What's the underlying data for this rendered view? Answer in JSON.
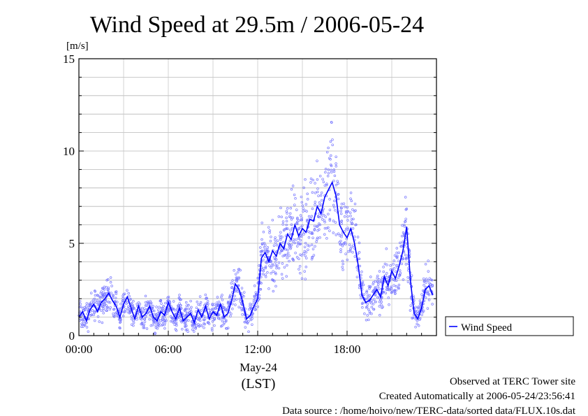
{
  "chart_data": {
    "type": "scatter",
    "title": "Wind Speed at 29.5m / 2006-05-24",
    "ylabel": "[m/s]",
    "xlabel": "(LST)",
    "date_label": "May-24",
    "ylim": [
      0,
      15
    ],
    "xlim": [
      0,
      24
    ],
    "yticks": [
      {
        "value": 0,
        "label": "0"
      },
      {
        "value": 5,
        "label": "5"
      },
      {
        "value": 10,
        "label": "10"
      },
      {
        "value": 15,
        "label": "15"
      }
    ],
    "xticks": [
      {
        "value": 0,
        "label": "00:00"
      },
      {
        "value": 6,
        "label": "06:00"
      },
      {
        "value": 12,
        "label": "12:00"
      },
      {
        "value": 18,
        "label": "18:00"
      }
    ],
    "grid": true,
    "legend": {
      "position": "right",
      "entries": [
        "Wind Speed"
      ]
    },
    "series": [
      {
        "name": "Wind Speed",
        "color": "#0000ff",
        "x": [
          0.0,
          0.25,
          0.5,
          0.75,
          1.0,
          1.25,
          1.5,
          1.75,
          2.0,
          2.25,
          2.5,
          2.75,
          3.0,
          3.25,
          3.5,
          3.75,
          4.0,
          4.25,
          4.5,
          4.75,
          5.0,
          5.25,
          5.5,
          5.75,
          6.0,
          6.25,
          6.5,
          6.75,
          7.0,
          7.25,
          7.5,
          7.75,
          8.0,
          8.25,
          8.5,
          8.75,
          9.0,
          9.25,
          9.5,
          9.75,
          10.0,
          10.25,
          10.5,
          10.75,
          11.0,
          11.25,
          11.5,
          11.75,
          12.0,
          12.25,
          12.5,
          12.75,
          13.0,
          13.25,
          13.5,
          13.75,
          14.0,
          14.25,
          14.5,
          14.75,
          15.0,
          15.25,
          15.5,
          15.75,
          16.0,
          16.25,
          16.5,
          16.75,
          17.0,
          17.25,
          17.5,
          17.75,
          18.0,
          18.25,
          18.5,
          18.75,
          19.0,
          19.25,
          19.5,
          19.75,
          20.0,
          20.25,
          20.5,
          20.75,
          21.0,
          21.25,
          21.5,
          21.75,
          22.0,
          22.25,
          22.5,
          22.75,
          23.0,
          23.25,
          23.5,
          23.75
        ],
        "y": [
          1.0,
          1.3,
          0.8,
          1.4,
          1.7,
          1.3,
          1.8,
          2.0,
          2.3,
          1.9,
          1.6,
          1.0,
          1.7,
          2.1,
          1.5,
          0.9,
          1.6,
          1.0,
          1.2,
          1.6,
          1.0,
          0.8,
          1.3,
          1.1,
          1.8,
          1.3,
          0.9,
          1.5,
          0.8,
          1.0,
          1.2,
          0.7,
          1.4,
          1.0,
          1.6,
          0.9,
          1.3,
          1.1,
          1.7,
          1.0,
          1.2,
          1.9,
          2.8,
          2.5,
          1.8,
          0.9,
          1.1,
          1.6,
          2.0,
          4.2,
          4.5,
          4.0,
          4.6,
          4.3,
          5.0,
          4.7,
          5.5,
          5.2,
          6.0,
          5.4,
          5.8,
          5.6,
          6.3,
          6.2,
          7.0,
          6.6,
          7.5,
          7.9,
          8.3,
          7.6,
          6.0,
          5.6,
          5.3,
          5.8,
          5.0,
          3.8,
          2.2,
          1.8,
          1.9,
          2.2,
          2.5,
          2.1,
          3.2,
          2.7,
          3.5,
          3.1,
          3.8,
          4.6,
          5.9,
          3.0,
          1.2,
          0.9,
          1.5,
          2.5,
          2.7,
          2.2
        ]
      }
    ]
  },
  "footer": {
    "line1": "Observed at TERC Tower site",
    "line2": "Created Automatically at 2006-05-24/23:56:41",
    "line3": "Data source : /home/hoivo/new/TERC-data/sorted  data/FLUX.10s.dat"
  }
}
